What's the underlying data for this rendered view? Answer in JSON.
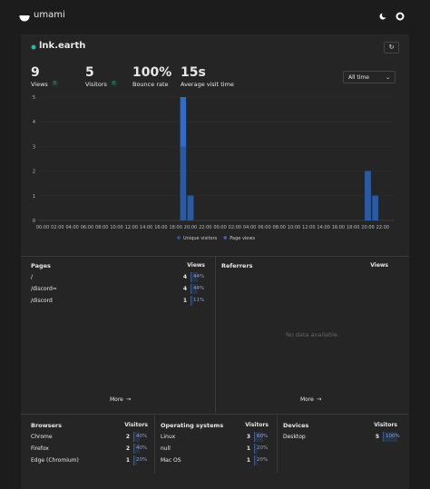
{
  "header": {
    "brand": "umami"
  },
  "site": {
    "name": "lnk.earth"
  },
  "metrics": [
    {
      "value": "9",
      "label": "Views",
      "change": "0"
    },
    {
      "value": "5",
      "label": "Visitors",
      "change": "0"
    },
    {
      "value": "100%",
      "label": "Bounce rate"
    },
    {
      "value": "15s",
      "label": "Average visit time"
    }
  ],
  "filter": "All time",
  "chart": {
    "type": "bar",
    "categories": [
      "00:00",
      null,
      "02:00",
      null,
      "04:00",
      null,
      "06:00",
      null,
      "08:00",
      null,
      "10:00",
      null,
      "12:00",
      null,
      "14:00",
      null,
      "16:00",
      null,
      "18:00",
      null,
      "20:00",
      null,
      "22:00",
      null,
      "00:00",
      null,
      "02:00",
      null,
      "04:00",
      null,
      "06:00",
      null,
      "08:00",
      null,
      "10:00",
      null,
      "12:00",
      null,
      "14:00",
      null,
      "16:00",
      null,
      "18:00",
      null,
      "20:00",
      null,
      "22:00",
      null
    ],
    "series": [
      {
        "name": "Page views",
        "color": "#2f6bc9",
        "values": [
          0,
          0,
          0,
          0,
          0,
          0,
          0,
          0,
          0,
          0,
          0,
          0,
          0,
          0,
          0,
          0,
          0,
          0,
          0,
          5,
          1,
          0,
          0,
          0,
          0,
          0,
          0,
          0,
          0,
          0,
          0,
          0,
          0,
          0,
          0,
          0,
          0,
          0,
          0,
          0,
          0,
          0,
          0,
          0,
          2,
          1,
          0,
          0
        ]
      },
      {
        "name": "Unique visitors",
        "color": "#2a5aa3",
        "values": [
          0,
          0,
          0,
          0,
          0,
          0,
          0,
          0,
          0,
          0,
          0,
          0,
          0,
          0,
          0,
          0,
          0,
          0,
          0,
          3,
          1,
          0,
          0,
          0,
          0,
          0,
          0,
          0,
          0,
          0,
          0,
          0,
          0,
          0,
          0,
          0,
          0,
          0,
          0,
          0,
          0,
          0,
          0,
          0,
          2,
          1,
          0,
          0
        ]
      }
    ],
    "ylim": [
      0,
      5
    ],
    "yticks": [
      0,
      1,
      2,
      3,
      4,
      5
    ]
  },
  "pages": {
    "title": "Pages",
    "metric": "Views",
    "more": "More",
    "rows": [
      {
        "label": "/",
        "value": 4,
        "percent": {
          "value": 44,
          "label": "44%"
        }
      },
      {
        "label": "/discord=",
        "value": 4,
        "percent": {
          "value": 44,
          "label": "44%"
        }
      },
      {
        "label": "/discord",
        "value": 1,
        "percent": {
          "value": 11,
          "label": "11%"
        }
      }
    ]
  },
  "referrers": {
    "title": "Referrers",
    "metric": "Views",
    "empty": "No data available.",
    "more": "More"
  },
  "browsers": {
    "title": "Browsers",
    "metric": "Visitors",
    "rows": [
      {
        "label": "Chrome",
        "value": 2,
        "percent": {
          "value": 40,
          "label": "40%"
        }
      },
      {
        "label": "Firefox",
        "value": 2,
        "percent": {
          "value": 40,
          "label": "40%"
        }
      },
      {
        "label": "Edge (Chromium)",
        "value": 1,
        "percent": {
          "value": 20,
          "label": "20%"
        }
      }
    ]
  },
  "os": {
    "title": "Operating systems",
    "metric": "Visitors",
    "rows": [
      {
        "label": "Linux",
        "value": 3,
        "percent": {
          "value": 60,
          "label": "60%"
        }
      },
      {
        "label": "null",
        "value": 1,
        "percent": {
          "value": 20,
          "label": "20%"
        }
      },
      {
        "label": "Mac OS",
        "value": 1,
        "percent": {
          "value": 20,
          "label": "20%"
        }
      }
    ]
  },
  "devices": {
    "title": "Devices",
    "metric": "Visitors",
    "rows": [
      {
        "label": "Desktop",
        "value": 5,
        "percent": {
          "value": 100,
          "label": "100%"
        }
      }
    ]
  }
}
